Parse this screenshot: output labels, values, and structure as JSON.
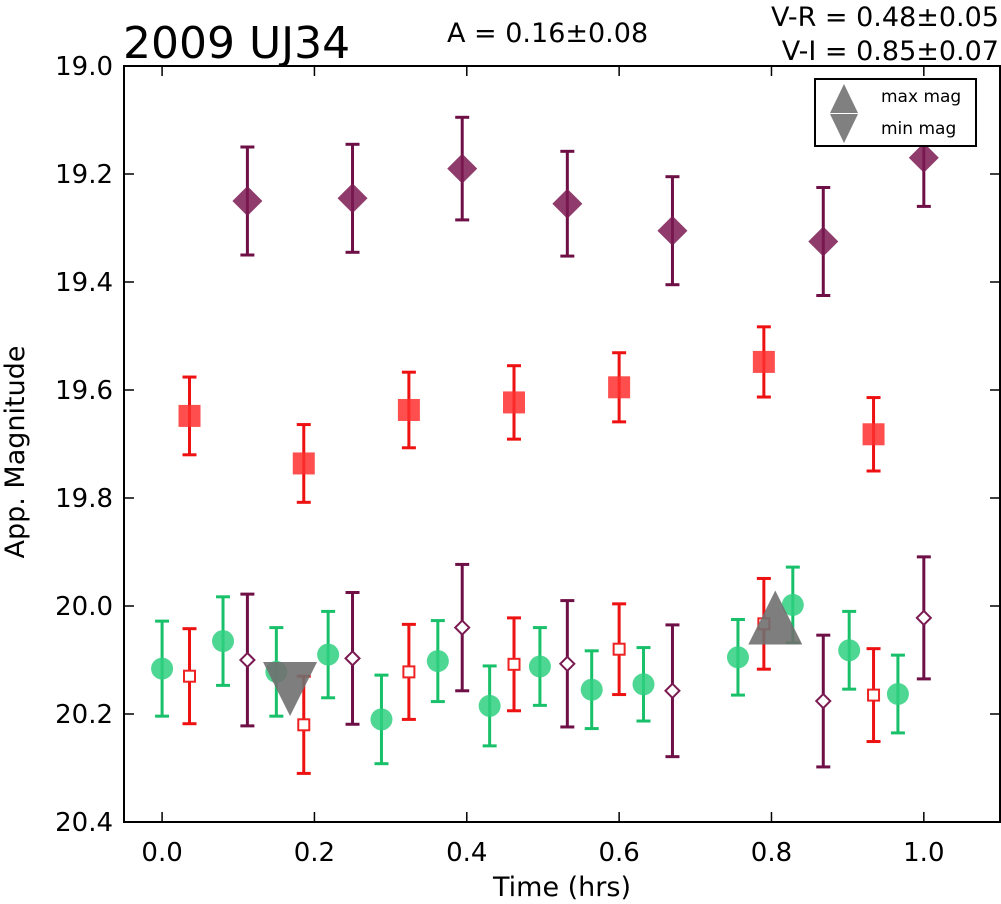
{
  "chart_data": {
    "type": "scatter",
    "title": "2009 UJ34",
    "annotations": [
      {
        "id": "amplitude",
        "text": "A  = 0.16±0.08"
      },
      {
        "id": "v_minus_r",
        "text": "V-R = 0.48±0.05"
      },
      {
        "id": "v_minus_i",
        "text": "V-I  = 0.85±0.07"
      }
    ],
    "xlabel": "Time (hrs)",
    "ylabel": "App. Magnitude",
    "xlim": [
      -0.05,
      1.1
    ],
    "ylim": [
      20.4,
      19.0
    ],
    "y_inverted": true,
    "xticks": [
      {
        "value": 0.0,
        "label": "0.0"
      },
      {
        "value": 0.2,
        "label": "0.2"
      },
      {
        "value": 0.4,
        "label": "0.4"
      },
      {
        "value": 0.6,
        "label": "0.6"
      },
      {
        "value": 0.8,
        "label": "0.8"
      },
      {
        "value": 1.0,
        "label": "1.0"
      }
    ],
    "yticks": [
      {
        "value": 19.0,
        "label": "19.0"
      },
      {
        "value": 19.2,
        "label": "19.2"
      },
      {
        "value": 19.4,
        "label": "19.4"
      },
      {
        "value": 19.6,
        "label": "19.6"
      },
      {
        "value": 19.8,
        "label": "19.8"
      },
      {
        "value": 20.0,
        "label": "20.0"
      },
      {
        "value": 20.2,
        "label": "20.2"
      },
      {
        "value": 20.4,
        "label": "20.4"
      }
    ],
    "grid": false,
    "legend": {
      "position": "top-right",
      "entries": [
        {
          "marker": "triangle-up",
          "label": "max mag"
        },
        {
          "marker": "triangle-down",
          "label": "min mag"
        }
      ]
    },
    "series": [
      {
        "marker": "diamond",
        "filled": true,
        "color": "#7b1a52",
        "bar_color": "#6e0f46",
        "points": [
          {
            "x": 0.112,
            "y": 19.25,
            "err": 0.1
          },
          {
            "x": 0.25,
            "y": 19.245,
            "err": 0.1
          },
          {
            "x": 0.394,
            "y": 19.19,
            "err": 0.095
          },
          {
            "x": 0.532,
            "y": 19.255,
            "err": 0.097
          },
          {
            "x": 0.67,
            "y": 19.305,
            "err": 0.1
          },
          {
            "x": 0.868,
            "y": 19.325,
            "err": 0.1
          },
          {
            "x": 1.0,
            "y": 19.17,
            "err": 0.09
          }
        ]
      },
      {
        "marker": "square",
        "filled": true,
        "color": "#ff2f2f",
        "bar_color": "#ee1111",
        "points": [
          {
            "x": 0.036,
            "y": 19.648,
            "err": 0.072
          },
          {
            "x": 0.186,
            "y": 19.736,
            "err": 0.072
          },
          {
            "x": 0.324,
            "y": 19.637,
            "err": 0.07
          },
          {
            "x": 0.462,
            "y": 19.623,
            "err": 0.068
          },
          {
            "x": 0.6,
            "y": 19.595,
            "err": 0.064
          },
          {
            "x": 0.79,
            "y": 19.548,
            "err": 0.065
          },
          {
            "x": 0.934,
            "y": 19.682,
            "err": 0.068
          }
        ]
      },
      {
        "marker": "circle",
        "filled": true,
        "color": "#2ed07f",
        "bar_color": "#19c06a",
        "points": [
          {
            "x": 0.0,
            "y": 20.116,
            "err": 0.088
          },
          {
            "x": 0.08,
            "y": 20.065,
            "err": 0.082
          },
          {
            "x": 0.15,
            "y": 20.122,
            "err": 0.082
          },
          {
            "x": 0.218,
            "y": 20.09,
            "err": 0.08
          },
          {
            "x": 0.288,
            "y": 20.21,
            "err": 0.082
          },
          {
            "x": 0.362,
            "y": 20.102,
            "err": 0.075
          },
          {
            "x": 0.43,
            "y": 20.185,
            "err": 0.074
          },
          {
            "x": 0.496,
            "y": 20.112,
            "err": 0.072
          },
          {
            "x": 0.564,
            "y": 20.155,
            "err": 0.072
          },
          {
            "x": 0.632,
            "y": 20.145,
            "err": 0.068
          },
          {
            "x": 0.756,
            "y": 20.095,
            "err": 0.07
          },
          {
            "x": 0.828,
            "y": 19.998,
            "err": 0.07
          },
          {
            "x": 0.902,
            "y": 20.082,
            "err": 0.072
          },
          {
            "x": 0.966,
            "y": 20.163,
            "err": 0.072
          }
        ]
      },
      {
        "marker": "square",
        "filled": false,
        "color": "#ee2222",
        "bar_color": "#ee1111",
        "points": [
          {
            "x": 0.036,
            "y": 20.13,
            "err": 0.088
          },
          {
            "x": 0.186,
            "y": 20.22,
            "err": 0.09
          },
          {
            "x": 0.324,
            "y": 20.122,
            "err": 0.088
          },
          {
            "x": 0.462,
            "y": 20.108,
            "err": 0.086
          },
          {
            "x": 0.6,
            "y": 20.08,
            "err": 0.084
          },
          {
            "x": 0.79,
            "y": 20.033,
            "err": 0.084
          },
          {
            "x": 0.934,
            "y": 20.165,
            "err": 0.086
          }
        ]
      },
      {
        "marker": "diamond",
        "filled": false,
        "color": "#7b1a52",
        "bar_color": "#6e0f46",
        "points": [
          {
            "x": 0.112,
            "y": 20.1,
            "err": 0.122
          },
          {
            "x": 0.25,
            "y": 20.097,
            "err": 0.122
          },
          {
            "x": 0.394,
            "y": 20.04,
            "err": 0.117
          },
          {
            "x": 0.532,
            "y": 20.107,
            "err": 0.117
          },
          {
            "x": 0.67,
            "y": 20.157,
            "err": 0.122
          },
          {
            "x": 0.868,
            "y": 20.176,
            "err": 0.122
          },
          {
            "x": 1.0,
            "y": 20.022,
            "err": 0.113
          }
        ]
      }
    ],
    "extrema": [
      {
        "type": "max",
        "marker": "triangle-up",
        "x": 0.805,
        "y": 20.025,
        "color": "#707070"
      },
      {
        "type": "min",
        "marker": "triangle-down",
        "x": 0.168,
        "y": 20.15,
        "color": "#707070"
      }
    ]
  }
}
